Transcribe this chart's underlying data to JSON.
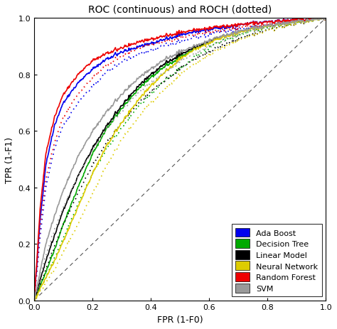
{
  "title": "ROC (continuous) and ROCH (dotted)",
  "xlabel": "FPR (1-F0)",
  "ylabel": "TPR (1-F1)",
  "xlim": [
    0.0,
    1.0
  ],
  "ylim": [
    0.0,
    1.0
  ],
  "xticks": [
    0.0,
    0.2,
    0.4,
    0.6,
    0.8,
    1.0
  ],
  "yticks": [
    0.0,
    0.2,
    0.4,
    0.6,
    0.8,
    1.0
  ],
  "background_color": "#ffffff",
  "models": [
    {
      "name": "Ada Boost",
      "color": "#0000ee",
      "roc": [
        [
          0,
          0
        ],
        [
          0.02,
          0.28
        ],
        [
          0.04,
          0.48
        ],
        [
          0.07,
          0.62
        ],
        [
          0.1,
          0.7
        ],
        [
          0.15,
          0.77
        ],
        [
          0.2,
          0.82
        ],
        [
          0.25,
          0.855
        ],
        [
          0.3,
          0.88
        ],
        [
          0.35,
          0.895
        ],
        [
          0.4,
          0.91
        ],
        [
          0.45,
          0.925
        ],
        [
          0.5,
          0.94
        ],
        [
          0.55,
          0.95
        ],
        [
          0.6,
          0.96
        ],
        [
          0.65,
          0.965
        ],
        [
          0.7,
          0.975
        ],
        [
          0.75,
          0.982
        ],
        [
          0.8,
          0.987
        ],
        [
          0.85,
          0.991
        ],
        [
          0.9,
          0.995
        ],
        [
          0.95,
          0.997
        ],
        [
          1.0,
          1.0
        ]
      ],
      "roch": [
        [
          0,
          0
        ],
        [
          0.02,
          0.22
        ],
        [
          0.04,
          0.4
        ],
        [
          0.07,
          0.54
        ],
        [
          0.1,
          0.62
        ],
        [
          0.15,
          0.7
        ],
        [
          0.2,
          0.76
        ],
        [
          0.25,
          0.81
        ],
        [
          0.3,
          0.845
        ],
        [
          0.35,
          0.868
        ],
        [
          0.4,
          0.887
        ],
        [
          0.45,
          0.903
        ],
        [
          0.5,
          0.917
        ],
        [
          0.55,
          0.93
        ],
        [
          0.6,
          0.942
        ],
        [
          0.65,
          0.952
        ],
        [
          0.7,
          0.96
        ],
        [
          0.75,
          0.968
        ],
        [
          0.8,
          0.975
        ],
        [
          0.85,
          0.982
        ],
        [
          0.9,
          0.988
        ],
        [
          0.95,
          0.994
        ],
        [
          1.0,
          1.0
        ]
      ]
    },
    {
      "name": "Decision Tree",
      "color": "#00aa00",
      "roc": [
        [
          0,
          0
        ],
        [
          0.02,
          0.05
        ],
        [
          0.04,
          0.1
        ],
        [
          0.07,
          0.18
        ],
        [
          0.1,
          0.27
        ],
        [
          0.15,
          0.4
        ],
        [
          0.2,
          0.52
        ],
        [
          0.25,
          0.61
        ],
        [
          0.3,
          0.68
        ],
        [
          0.35,
          0.74
        ],
        [
          0.4,
          0.79
        ],
        [
          0.45,
          0.83
        ],
        [
          0.5,
          0.86
        ],
        [
          0.55,
          0.89
        ],
        [
          0.6,
          0.915
        ],
        [
          0.65,
          0.935
        ],
        [
          0.7,
          0.95
        ],
        [
          0.75,
          0.962
        ],
        [
          0.8,
          0.972
        ],
        [
          0.85,
          0.98
        ],
        [
          0.9,
          0.987
        ],
        [
          0.95,
          0.993
        ],
        [
          1.0,
          1.0
        ]
      ],
      "roch": [
        [
          0,
          0
        ],
        [
          0.02,
          0.04
        ],
        [
          0.04,
          0.08
        ],
        [
          0.07,
          0.15
        ],
        [
          0.1,
          0.22
        ],
        [
          0.15,
          0.34
        ],
        [
          0.2,
          0.45
        ],
        [
          0.25,
          0.54
        ],
        [
          0.3,
          0.61
        ],
        [
          0.35,
          0.68
        ],
        [
          0.4,
          0.73
        ],
        [
          0.45,
          0.78
        ],
        [
          0.5,
          0.82
        ],
        [
          0.55,
          0.86
        ],
        [
          0.6,
          0.895
        ],
        [
          0.65,
          0.92
        ],
        [
          0.7,
          0.94
        ],
        [
          0.75,
          0.955
        ],
        [
          0.8,
          0.967
        ],
        [
          0.85,
          0.976
        ],
        [
          0.9,
          0.984
        ],
        [
          0.95,
          0.991
        ],
        [
          1.0,
          1.0
        ]
      ]
    },
    {
      "name": "Linear Model",
      "color": "#000000",
      "roc": [
        [
          0,
          0
        ],
        [
          0.02,
          0.07
        ],
        [
          0.04,
          0.14
        ],
        [
          0.07,
          0.23
        ],
        [
          0.1,
          0.32
        ],
        [
          0.15,
          0.44
        ],
        [
          0.2,
          0.54
        ],
        [
          0.25,
          0.62
        ],
        [
          0.3,
          0.69
        ],
        [
          0.35,
          0.75
        ],
        [
          0.4,
          0.8
        ],
        [
          0.45,
          0.84
        ],
        [
          0.5,
          0.87
        ],
        [
          0.55,
          0.895
        ],
        [
          0.6,
          0.917
        ],
        [
          0.65,
          0.935
        ],
        [
          0.7,
          0.95
        ],
        [
          0.75,
          0.963
        ],
        [
          0.8,
          0.973
        ],
        [
          0.85,
          0.981
        ],
        [
          0.9,
          0.988
        ],
        [
          0.95,
          0.993
        ],
        [
          1.0,
          1.0
        ]
      ],
      "roch": [
        [
          0,
          0
        ],
        [
          0.02,
          0.05
        ],
        [
          0.04,
          0.11
        ],
        [
          0.07,
          0.19
        ],
        [
          0.1,
          0.27
        ],
        [
          0.15,
          0.38
        ],
        [
          0.2,
          0.48
        ],
        [
          0.25,
          0.56
        ],
        [
          0.3,
          0.63
        ],
        [
          0.35,
          0.69
        ],
        [
          0.4,
          0.74
        ],
        [
          0.45,
          0.78
        ],
        [
          0.5,
          0.82
        ],
        [
          0.55,
          0.855
        ],
        [
          0.6,
          0.88
        ],
        [
          0.65,
          0.905
        ],
        [
          0.7,
          0.925
        ],
        [
          0.75,
          0.942
        ],
        [
          0.8,
          0.957
        ],
        [
          0.85,
          0.969
        ],
        [
          0.9,
          0.979
        ],
        [
          0.95,
          0.988
        ],
        [
          1.0,
          1.0
        ]
      ]
    },
    {
      "name": "Neural Network",
      "color": "#ddcc00",
      "roc": [
        [
          0,
          0
        ],
        [
          0.02,
          0.04
        ],
        [
          0.04,
          0.08
        ],
        [
          0.07,
          0.14
        ],
        [
          0.1,
          0.21
        ],
        [
          0.15,
          0.33
        ],
        [
          0.2,
          0.45
        ],
        [
          0.25,
          0.55
        ],
        [
          0.3,
          0.63
        ],
        [
          0.35,
          0.7
        ],
        [
          0.4,
          0.76
        ],
        [
          0.45,
          0.81
        ],
        [
          0.5,
          0.855
        ],
        [
          0.55,
          0.888
        ],
        [
          0.6,
          0.912
        ],
        [
          0.65,
          0.932
        ],
        [
          0.7,
          0.948
        ],
        [
          0.75,
          0.961
        ],
        [
          0.8,
          0.971
        ],
        [
          0.85,
          0.979
        ],
        [
          0.9,
          0.986
        ],
        [
          0.95,
          0.992
        ],
        [
          1.0,
          1.0
        ]
      ],
      "roch": [
        [
          0,
          0
        ],
        [
          0.02,
          0.03
        ],
        [
          0.04,
          0.06
        ],
        [
          0.07,
          0.11
        ],
        [
          0.1,
          0.17
        ],
        [
          0.15,
          0.27
        ],
        [
          0.2,
          0.38
        ],
        [
          0.25,
          0.48
        ],
        [
          0.3,
          0.57
        ],
        [
          0.35,
          0.64
        ],
        [
          0.4,
          0.7
        ],
        [
          0.45,
          0.75
        ],
        [
          0.5,
          0.8
        ],
        [
          0.55,
          0.838
        ],
        [
          0.6,
          0.87
        ],
        [
          0.65,
          0.897
        ],
        [
          0.7,
          0.92
        ],
        [
          0.75,
          0.939
        ],
        [
          0.8,
          0.955
        ],
        [
          0.85,
          0.968
        ],
        [
          0.9,
          0.979
        ],
        [
          0.95,
          0.989
        ],
        [
          1.0,
          1.0
        ]
      ]
    },
    {
      "name": "Random Forest",
      "color": "#ee0000",
      "roc": [
        [
          0,
          0
        ],
        [
          0.02,
          0.32
        ],
        [
          0.04,
          0.52
        ],
        [
          0.07,
          0.65
        ],
        [
          0.1,
          0.73
        ],
        [
          0.15,
          0.8
        ],
        [
          0.2,
          0.85
        ],
        [
          0.25,
          0.875
        ],
        [
          0.3,
          0.895
        ],
        [
          0.35,
          0.912
        ],
        [
          0.4,
          0.925
        ],
        [
          0.45,
          0.937
        ],
        [
          0.5,
          0.948
        ],
        [
          0.55,
          0.957
        ],
        [
          0.6,
          0.964
        ],
        [
          0.65,
          0.97
        ],
        [
          0.7,
          0.976
        ],
        [
          0.75,
          0.981
        ],
        [
          0.8,
          0.986
        ],
        [
          0.85,
          0.99
        ],
        [
          0.9,
          0.994
        ],
        [
          0.95,
          0.997
        ],
        [
          1.0,
          1.0
        ]
      ],
      "roch": [
        [
          0,
          0
        ],
        [
          0.02,
          0.25
        ],
        [
          0.04,
          0.43
        ],
        [
          0.07,
          0.56
        ],
        [
          0.1,
          0.65
        ],
        [
          0.15,
          0.73
        ],
        [
          0.2,
          0.79
        ],
        [
          0.25,
          0.833
        ],
        [
          0.3,
          0.866
        ],
        [
          0.35,
          0.888
        ],
        [
          0.4,
          0.905
        ],
        [
          0.45,
          0.918
        ],
        [
          0.5,
          0.93
        ],
        [
          0.55,
          0.94
        ],
        [
          0.6,
          0.95
        ],
        [
          0.65,
          0.958
        ],
        [
          0.7,
          0.965
        ],
        [
          0.75,
          0.971
        ],
        [
          0.8,
          0.978
        ],
        [
          0.85,
          0.984
        ],
        [
          0.9,
          0.99
        ],
        [
          0.95,
          0.995
        ],
        [
          1.0,
          1.0
        ]
      ]
    },
    {
      "name": "SVM",
      "color": "#999999",
      "roc": [
        [
          0,
          0
        ],
        [
          0.02,
          0.1
        ],
        [
          0.04,
          0.2
        ],
        [
          0.07,
          0.3
        ],
        [
          0.1,
          0.39
        ],
        [
          0.15,
          0.51
        ],
        [
          0.2,
          0.6
        ],
        [
          0.25,
          0.67
        ],
        [
          0.3,
          0.73
        ],
        [
          0.35,
          0.78
        ],
        [
          0.4,
          0.82
        ],
        [
          0.45,
          0.855
        ],
        [
          0.5,
          0.88
        ],
        [
          0.55,
          0.9
        ],
        [
          0.6,
          0.92
        ],
        [
          0.65,
          0.937
        ],
        [
          0.7,
          0.952
        ],
        [
          0.75,
          0.964
        ],
        [
          0.8,
          0.973
        ],
        [
          0.85,
          0.981
        ],
        [
          0.9,
          0.988
        ],
        [
          0.95,
          0.993
        ],
        [
          1.0,
          1.0
        ]
      ],
      "roch": [
        [
          0,
          0
        ],
        [
          0.02,
          0.08
        ],
        [
          0.04,
          0.16
        ],
        [
          0.07,
          0.25
        ],
        [
          0.1,
          0.33
        ],
        [
          0.15,
          0.44
        ],
        [
          0.2,
          0.53
        ],
        [
          0.25,
          0.61
        ],
        [
          0.3,
          0.67
        ],
        [
          0.35,
          0.73
        ],
        [
          0.4,
          0.77
        ],
        [
          0.45,
          0.81
        ],
        [
          0.5,
          0.845
        ],
        [
          0.55,
          0.874
        ],
        [
          0.6,
          0.9
        ],
        [
          0.65,
          0.921
        ],
        [
          0.7,
          0.94
        ],
        [
          0.75,
          0.955
        ],
        [
          0.8,
          0.967
        ],
        [
          0.85,
          0.977
        ],
        [
          0.9,
          0.985
        ],
        [
          0.95,
          0.991
        ],
        [
          1.0,
          1.0
        ]
      ]
    }
  ],
  "legend_colors": [
    "#0000ee",
    "#00aa00",
    "#000000",
    "#ddcc00",
    "#ee0000",
    "#999999"
  ],
  "legend_labels": [
    "Ada Boost",
    "Decision Tree",
    "Linear Model",
    "Neural Network",
    "Random Forest",
    "SVM"
  ],
  "line_width": 1.2,
  "title_fontsize": 10,
  "axis_fontsize": 9,
  "tick_fontsize": 8,
  "legend_fontsize": 8
}
